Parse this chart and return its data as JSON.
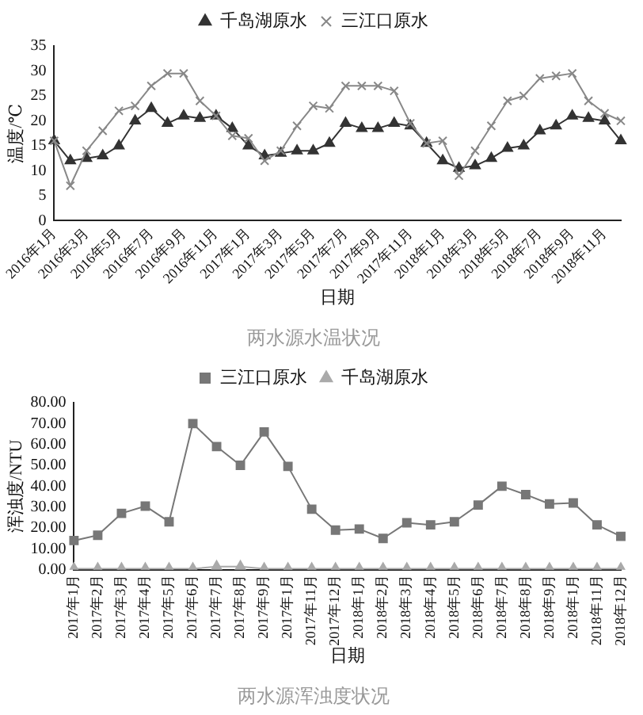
{
  "chart_data": [
    {
      "type": "line",
      "title": "两水源水温状况",
      "xlabel": "日期",
      "ylabel": "温度/℃",
      "categories": [
        "2016年1月",
        null,
        "2016年3月",
        null,
        "2016年5月",
        null,
        "2016年7月",
        null,
        "2016年9月",
        null,
        "2016年11月",
        null,
        "2017年1月",
        null,
        "2017年3月",
        null,
        "2017年5月",
        null,
        "2017年7月",
        null,
        "2017年9月",
        null,
        "2017年11月",
        null,
        "2018年1月",
        null,
        "2018年3月",
        null,
        "2018年5月",
        null,
        "2018年7月",
        null,
        "2018年9月",
        null,
        "2018年11月",
        null
      ],
      "series": [
        {
          "name": "千岛湖原水",
          "color": "#333333",
          "marker": "triangle",
          "values": [
            16,
            12,
            12.5,
            13,
            15,
            20,
            22.5,
            19.5,
            21,
            20.5,
            21,
            18.5,
            15,
            13,
            13.5,
            14,
            14,
            15.5,
            19.5,
            18.5,
            18.5,
            19.5,
            19,
            15.5,
            12,
            10.5,
            11,
            12.5,
            14.5,
            15,
            18,
            19,
            21,
            20.5,
            20,
            16
          ]
        },
        {
          "name": "三江口原水",
          "color": "#888888",
          "marker": "cross",
          "values": [
            16,
            7,
            14,
            18,
            22,
            23,
            27,
            29.5,
            29.5,
            24,
            21,
            17,
            16.5,
            12,
            14,
            19,
            23,
            22.5,
            27,
            27,
            27,
            26,
            19.5,
            15.5,
            16,
            9,
            14,
            19,
            24,
            25,
            28.5,
            29,
            29.5,
            24,
            21.5,
            20
          ]
        }
      ],
      "ylim": [
        0,
        35
      ],
      "yticks": [
        0,
        5,
        10,
        15,
        20,
        25,
        30,
        35
      ],
      "grid": false,
      "legend": "top"
    },
    {
      "type": "line",
      "title": "两水源浑浊度状况",
      "xlabel": "日期",
      "ylabel": "浑浊度/NTU",
      "categories": [
        "2017年1月",
        "2017年2月",
        "2017年3月",
        "2017年4月",
        "2017年5月",
        "2017年6月",
        "2017年7月",
        "2017年8月",
        "2017年9月",
        "2017年1月",
        "2017年11月",
        "2017年12月",
        "2018年1月",
        "2018年2月",
        "2018年3月",
        "2018年4月",
        "2018年5月",
        "2018年6月",
        "2018年7月",
        "2018年8月",
        "2018年9月",
        "2018年1月",
        "2018年11月",
        "2018年12月"
      ],
      "series": [
        {
          "name": "三江口原水",
          "color": "#777777",
          "marker": "square",
          "values": [
            14,
            16.5,
            27,
            30.5,
            23,
            70,
            59,
            50,
            66,
            49.5,
            29,
            19,
            19.5,
            15,
            22.5,
            21.5,
            23,
            31,
            40,
            36,
            31.5,
            32,
            21.5,
            16
          ]
        },
        {
          "name": "千岛湖原水",
          "color": "#aaaaaa",
          "marker": "triangle",
          "values": [
            0.5,
            0.5,
            0.5,
            0.5,
            0.5,
            0.5,
            1.5,
            1.5,
            0.5,
            0.5,
            0.5,
            0.5,
            0.5,
            0.5,
            0.5,
            0.5,
            0.5,
            0.5,
            0.5,
            0.5,
            0.5,
            0.5,
            0.5,
            0.5
          ]
        }
      ],
      "ylim": [
        0,
        80
      ],
      "yticks": [
        {
          "value": 0,
          "label": "0.00"
        },
        {
          "value": 10,
          "label": "10.00"
        },
        {
          "value": 20,
          "label": "20.00"
        },
        {
          "value": 30,
          "label": "30.00"
        },
        {
          "value": 40,
          "label": "40.00"
        },
        {
          "value": 50,
          "label": "50.00"
        },
        {
          "value": 60,
          "label": "60.00"
        },
        {
          "value": 70,
          "label": "70.00"
        },
        {
          "value": 80,
          "label": "80.00"
        }
      ],
      "grid": false,
      "legend": "top"
    }
  ]
}
